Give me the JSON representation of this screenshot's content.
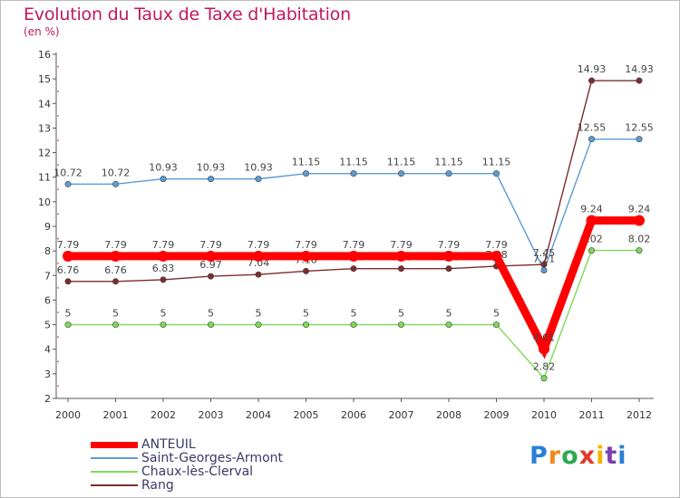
{
  "title": "Evolution du Taux de Taxe d'Habitation",
  "subtitle": "(en %)",
  "brand": "Proxiti",
  "chart_data": {
    "type": "line",
    "title": "Evolution du Taux de Taxe d'Habitation",
    "ylabel": "(en %)",
    "xlabel": "",
    "ylim": [
      2,
      16
    ],
    "yticks": [
      2,
      3,
      4,
      5,
      6,
      7,
      8,
      9,
      10,
      11,
      12,
      13,
      14,
      15,
      16
    ],
    "grid": false,
    "legend": "bottom-left",
    "categories": [
      "2000",
      "2001",
      "2002",
      "2003",
      "2004",
      "2005",
      "2006",
      "2007",
      "2008",
      "2009",
      "2010",
      "2011",
      "2012"
    ],
    "series": [
      {
        "name": "Saint-Georges-Armont",
        "color": "#5b9bd5",
        "values": [
          10.72,
          10.72,
          10.93,
          10.93,
          10.93,
          11.15,
          11.15,
          11.15,
          11.15,
          11.15,
          7.21,
          12.55,
          12.55
        ],
        "labels": [
          "10.72",
          "10.72",
          "10.93",
          "10.93",
          "10.93",
          "11.15",
          "11.15",
          "11.15",
          "11.15",
          "11.15",
          "7.21",
          "12.55",
          "12.55"
        ]
      },
      {
        "name": "Chaux-lès-Clerval",
        "color": "#7ed957",
        "values": [
          5,
          5,
          5,
          5,
          5,
          5,
          5,
          5,
          5,
          5,
          2.82,
          8.02,
          8.02
        ],
        "labels": [
          "5",
          "5",
          "5",
          "5",
          "5",
          "5",
          "5",
          "5",
          "5",
          "5",
          "2.82",
          "8.02",
          "8.02"
        ]
      },
      {
        "name": "Rang",
        "color": "#7b2d2d",
        "values": [
          6.76,
          6.76,
          6.83,
          6.97,
          7.04,
          7.18,
          7.28,
          7.28,
          7.28,
          7.38,
          7.45,
          14.93,
          14.93
        ],
        "labels": [
          "6.76",
          "6.76",
          "6.83",
          "6.97",
          "7.04",
          "7.18",
          "7.28",
          "7.28",
          "7.28",
          "7.38",
          "7.45",
          "14.93",
          "14.93"
        ]
      },
      {
        "name": "ANTEUIL",
        "color": "#ff0000",
        "values": [
          7.79,
          7.79,
          7.79,
          7.79,
          7.79,
          7.79,
          7.79,
          7.79,
          7.79,
          7.79,
          4.01,
          9.24,
          9.24
        ],
        "labels": [
          "7.79",
          "7.79",
          "7.79",
          "7.79",
          "7.79",
          "7.79",
          "7.79",
          "7.79",
          "7.79",
          "7.79",
          "4.01",
          "9.24",
          "9.24"
        ]
      }
    ]
  },
  "legend": [
    {
      "name": "ANTEUIL",
      "color": "#ff0000"
    },
    {
      "name": "Saint-Georges-Armont",
      "color": "#5b9bd5"
    },
    {
      "name": "Chaux-lès-Clerval",
      "color": "#7ed957"
    },
    {
      "name": "Rang",
      "color": "#7b2d2d"
    }
  ]
}
